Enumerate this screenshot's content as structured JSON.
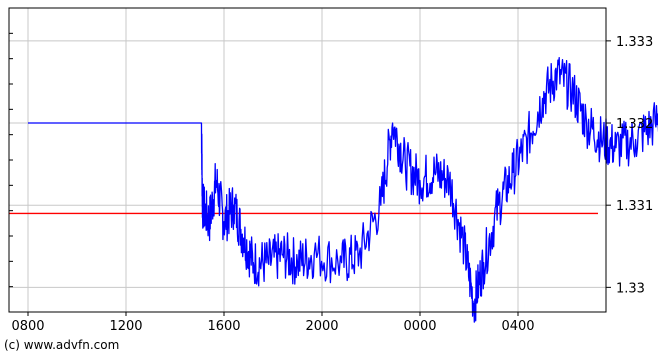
{
  "chart_data": {
    "type": "line",
    "title": "",
    "xlabel": "",
    "ylabel": "",
    "x_ticks": [
      "0800",
      "1200",
      "1600",
      "2000",
      "0000",
      "0400"
    ],
    "y_ticks": [
      "1.333",
      "1.332",
      "1.331",
      "1.33"
    ],
    "ylim": [
      1.3297,
      1.3334
    ],
    "grid": true,
    "reference_line": {
      "value": 1.3309,
      "color": "#ff0000"
    },
    "series": [
      {
        "color": "#0000ff",
        "points": [
          [
            0,
            1.332
          ],
          [
            1.77,
            1.332
          ],
          [
            1.78,
            1.331
          ],
          [
            1.85,
            1.3308
          ],
          [
            1.92,
            1.3313
          ],
          [
            2.0,
            1.3308
          ],
          [
            2.1,
            1.331
          ],
          [
            2.2,
            1.3306
          ],
          [
            2.3,
            1.3303
          ],
          [
            2.45,
            1.3303
          ],
          [
            2.6,
            1.3304
          ],
          [
            2.75,
            1.3303
          ],
          [
            2.92,
            1.3304
          ],
          [
            3.2,
            1.3303
          ],
          [
            3.38,
            1.3304
          ],
          [
            3.6,
            1.331
          ],
          [
            3.72,
            1.332
          ],
          [
            3.85,
            1.3315
          ],
          [
            4.0,
            1.3313
          ],
          [
            4.15,
            1.3314
          ],
          [
            4.3,
            1.3313
          ],
          [
            4.45,
            1.3305
          ],
          [
            4.55,
            1.3298
          ],
          [
            4.65,
            1.3303
          ],
          [
            4.8,
            1.331
          ],
          [
            4.95,
            1.3314
          ],
          [
            5.1,
            1.3318
          ],
          [
            5.25,
            1.3323
          ],
          [
            5.4,
            1.3326
          ],
          [
            5.55,
            1.3324
          ],
          [
            5.7,
            1.332
          ],
          [
            5.85,
            1.3318
          ],
          [
            6.0,
            1.3317
          ],
          [
            6.2,
            1.3318
          ],
          [
            6.4,
            1.332
          ],
          [
            6.55,
            1.3322
          ],
          [
            6.75,
            1.3322
          ],
          [
            6.9,
            1.3316
          ],
          [
            7.02,
            1.3309
          ],
          [
            7.15,
            1.3312
          ],
          [
            7.3,
            1.3315
          ],
          [
            7.45,
            1.332
          ],
          [
            7.55,
            1.3322
          ],
          [
            7.62,
            1.3318
          ],
          [
            7.72,
            1.333
          ],
          [
            7.76,
            1.3327
          ]
        ]
      }
    ]
  },
  "credit": "(c) www.advfn.com"
}
